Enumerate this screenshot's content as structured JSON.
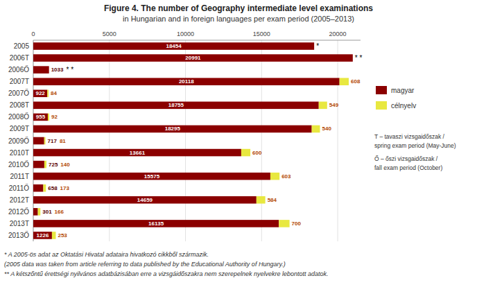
{
  "chart_data": {
    "type": "bar",
    "orientation": "horizontal",
    "stacked": true,
    "title": "Figure 4. The number of Geography intermediate level examinations",
    "subtitle": "in Hungarian and in foreign languages per exam period (2005–2013)",
    "categories": [
      "2005",
      "2006T",
      "2006Ő",
      "2007T",
      "2007Ő",
      "2008T",
      "2008Ő",
      "2009T",
      "2009Ő",
      "2010T",
      "2010Ő",
      "2011T",
      "2011Ő",
      "2012T",
      "2012Ő",
      "2013T",
      "2013Ő"
    ],
    "series": [
      {
        "name": "magyar",
        "color": "#8b0000",
        "values": [
          18454,
          20991,
          1033,
          20118,
          922,
          18755,
          955,
          18295,
          717,
          13661,
          725,
          15575,
          658,
          14659,
          301,
          16135,
          1226
        ]
      },
      {
        "name": "célnyelv",
        "color": "#e8e840",
        "values": [
          0,
          0,
          0,
          608,
          84,
          549,
          92,
          540,
          81,
          600,
          140,
          603,
          173,
          584,
          166,
          700,
          253
        ]
      }
    ],
    "xlim": [
      0,
      21500
    ],
    "xticks": [
      0,
      5000,
      10000,
      15000,
      20000
    ],
    "grid": true,
    "legend": "right",
    "data_labels": true,
    "annotations": [
      {
        "text": "*",
        "category": "2005"
      },
      {
        "text": "* *",
        "category": "2006T"
      },
      {
        "text": "* *",
        "category": "2006Ő"
      }
    ],
    "footnotes": [
      "* A 2005-ös adat az Oktatási Hivatal adataira hivatkozó cikkből származik.",
      "(2005 data was taken from article referring to data published by the Educational Authority of Hungary.)",
      "** A kétszőntű érettségi nyilvános adatbázisában erre a vizsgáidőszakra nem szerepelnek nyelvekre lebontott adatok."
    ],
    "notes": [
      "T – tavaszi vizsgaidőszak /",
      "spring exam period (May-June)",
      "Ő – őszi vizsgaidőszak /",
      "fall exam period (October)"
    ]
  }
}
